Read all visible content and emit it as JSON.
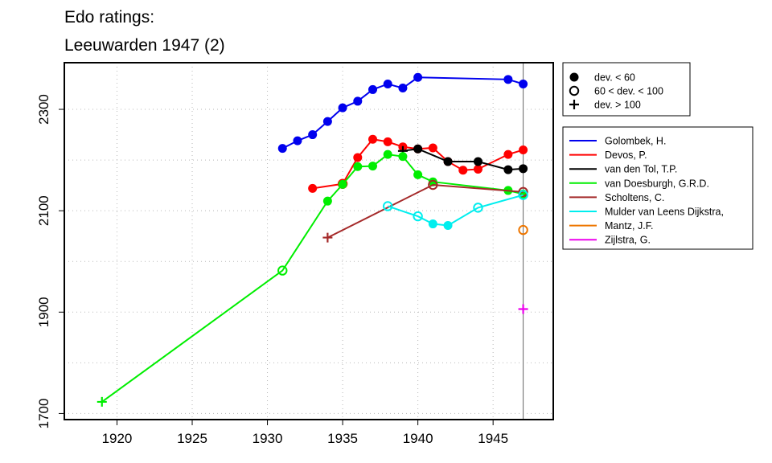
{
  "chart_data": {
    "type": "line",
    "title": [
      "Edo ratings:",
      "Leeuwarden 1947 (2)"
    ],
    "xlabel": "",
    "ylabel": "",
    "xlim": [
      1916.5,
      1949
    ],
    "ylim": [
      1688,
      2392
    ],
    "x_ticks": [
      1920,
      1925,
      1930,
      1935,
      1940,
      1945
    ],
    "y_ticks": [
      1700,
      1900,
      2100,
      2300
    ],
    "y_minor_grid": [
      1800,
      2000,
      2200
    ],
    "grid": true,
    "reference_line_x": 1947,
    "marker_legend": [
      {
        "label": "dev. < 60",
        "marker": "filled"
      },
      {
        "label": "60 < dev. < 100",
        "marker": "open"
      },
      {
        "label": "dev. > 100",
        "marker": "plus"
      }
    ],
    "series": [
      {
        "name": "Golombek, H.",
        "color": "#0000ee",
        "points": [
          [
            1931,
            2223,
            "filled"
          ],
          [
            1932,
            2238,
            "filled"
          ],
          [
            1933,
            2250,
            "filled"
          ],
          [
            1934,
            2276,
            "filled"
          ],
          [
            1935,
            2303,
            "filled"
          ],
          [
            1936,
            2316,
            "filled"
          ],
          [
            1937,
            2339,
            "filled"
          ],
          [
            1938,
            2350,
            "filled"
          ],
          [
            1939,
            2342,
            "filled"
          ],
          [
            1940,
            2363,
            "filled"
          ],
          [
            1946,
            2359,
            "filled"
          ],
          [
            1947,
            2350,
            "filled"
          ]
        ]
      },
      {
        "name": "Devos, P.",
        "color": "#ff0000",
        "points": [
          [
            1933,
            2144,
            "filled"
          ],
          [
            1935,
            2153,
            "open"
          ],
          [
            1936,
            2205,
            "filled"
          ],
          [
            1937,
            2241,
            "filled"
          ],
          [
            1938,
            2236,
            "filled"
          ],
          [
            1939,
            2226,
            "filled"
          ],
          [
            1940,
            2222,
            "filled"
          ],
          [
            1941,
            2224,
            "filled"
          ],
          [
            1942,
            2197,
            "filled"
          ],
          [
            1943,
            2180,
            "filled"
          ],
          [
            1944,
            2182,
            "filled"
          ],
          [
            1946,
            2211,
            "filled"
          ],
          [
            1947,
            2220,
            "filled"
          ]
        ]
      },
      {
        "name": "van den Tol, T.P.",
        "color": "#000000",
        "points": [
          [
            1939,
            2218,
            "plus"
          ],
          [
            1940,
            2222,
            "filled"
          ],
          [
            1942,
            2197,
            "filled"
          ],
          [
            1944,
            2197,
            "filled"
          ],
          [
            1946,
            2181,
            "filled"
          ],
          [
            1947,
            2183,
            "filled"
          ]
        ]
      },
      {
        "name": "van Doesburgh, G.R.D.",
        "color": "#00ee00",
        "points": [
          [
            1919,
            1723,
            "plus"
          ],
          [
            1931,
            1982,
            "open"
          ],
          [
            1934,
            2119,
            "filled"
          ],
          [
            1935,
            2152,
            "filled"
          ],
          [
            1936,
            2187,
            "filled"
          ],
          [
            1937,
            2188,
            "filled"
          ],
          [
            1938,
            2211,
            "filled"
          ],
          [
            1939,
            2207,
            "filled"
          ],
          [
            1940,
            2171,
            "filled"
          ],
          [
            1941,
            2157,
            "filled"
          ],
          [
            1946,
            2140,
            "filled"
          ],
          [
            1947,
            2133,
            "filled"
          ]
        ]
      },
      {
        "name": "Scholtens, C.",
        "color": "#a52a2a",
        "points": [
          [
            1934,
            2047,
            "plus"
          ],
          [
            1941,
            2151,
            "open"
          ],
          [
            1947,
            2137,
            "open"
          ]
        ]
      },
      {
        "name": "Mulder van Leens Dijkstra,",
        "color": "#00eeee",
        "points": [
          [
            1938,
            2109,
            "open"
          ],
          [
            1940,
            2089,
            "open"
          ],
          [
            1941,
            2074,
            "filled"
          ],
          [
            1942,
            2071,
            "filled"
          ],
          [
            1944,
            2106,
            "open"
          ],
          [
            1947,
            2131,
            "open"
          ]
        ]
      },
      {
        "name": "Mantz, J.F.",
        "color": "#ee7600",
        "points": [
          [
            1947,
            2062,
            "open"
          ]
        ]
      },
      {
        "name": "Zijlstra, G.",
        "color": "#ee00ee",
        "points": [
          [
            1947,
            1906,
            "plus"
          ]
        ]
      }
    ]
  }
}
